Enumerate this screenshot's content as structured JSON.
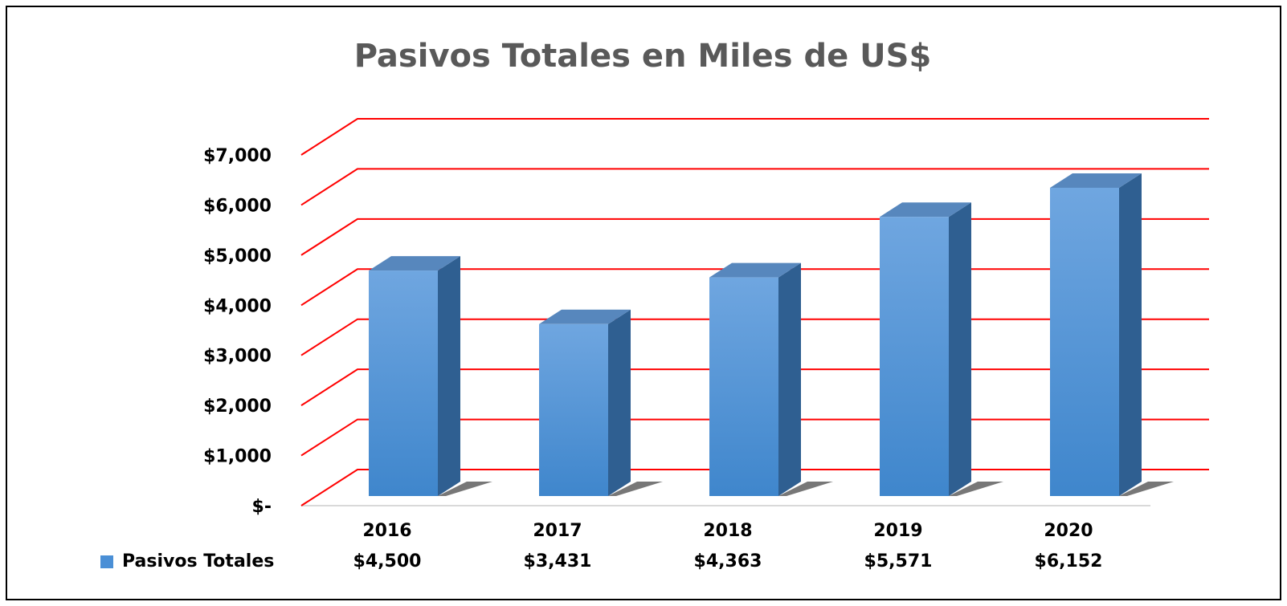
{
  "chart_data": {
    "type": "bar3d",
    "title": "Pasivos Totales en Miles de US$",
    "categories": [
      "2016",
      "2017",
      "2018",
      "2019",
      "2020"
    ],
    "series": [
      {
        "name": "Pasivos Totales",
        "color": "#4a8fd6",
        "values": [
          4500,
          3431,
          4363,
          5571,
          6152
        ],
        "value_labels": [
          "$4,500",
          "$3,431",
          "$4,363",
          "$5,571",
          "$6,152"
        ]
      }
    ],
    "ylim": [
      0,
      7000
    ],
    "yticks": [
      {
        "value": 0,
        "label": "$-"
      },
      {
        "value": 1000,
        "label": "$1,000"
      },
      {
        "value": 2000,
        "label": "$2,000"
      },
      {
        "value": 3000,
        "label": "$3,000"
      },
      {
        "value": 4000,
        "label": "$4,000"
      },
      {
        "value": 5000,
        "label": "$5,000"
      },
      {
        "value": 6000,
        "label": "$6,000"
      },
      {
        "value": 7000,
        "label": "$7,000"
      }
    ],
    "grid": true,
    "grid_color": "#ff0000",
    "data_table": true
  }
}
